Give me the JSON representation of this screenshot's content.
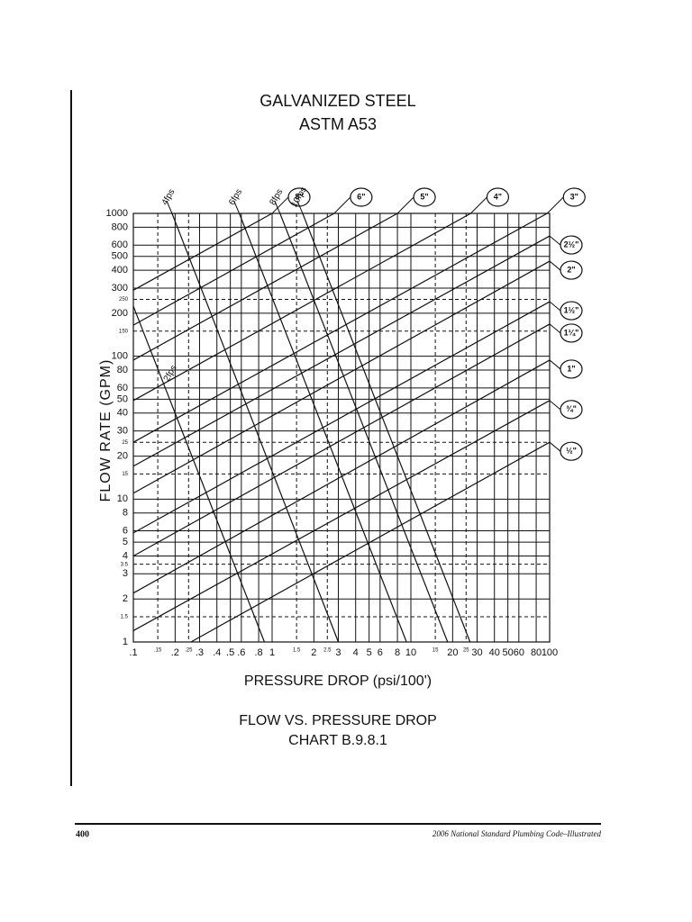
{
  "chart_data": {
    "type": "line",
    "title": "GALVANIZED STEEL",
    "subtitle": "ASTM A53",
    "x_label": "PRESSURE DROP (psi/100')",
    "y_label": "FLOW RATE (GPM)",
    "log_x": true,
    "log_y": true,
    "grid": true,
    "color": "#111111",
    "xlim": [
      0.1,
      100
    ],
    "ylim": [
      1,
      1000
    ],
    "xticks": [
      {
        "value": 0.1,
        "label": ".1"
      },
      {
        "value": 0.15,
        "label": ".15"
      },
      {
        "value": 0.2,
        "label": ".2"
      },
      {
        "value": 0.25,
        "label": ".25"
      },
      {
        "value": 0.3,
        "label": ".3"
      },
      {
        "value": 0.4,
        "label": ".4"
      },
      {
        "value": 0.5,
        "label": ".5"
      },
      {
        "value": 0.6,
        "label": ".6"
      },
      {
        "value": 0.8,
        "label": ".8"
      },
      1,
      1.5,
      2,
      2.5,
      3,
      4,
      5,
      6,
      8,
      10,
      15,
      20,
      25,
      30,
      40,
      50,
      60,
      80,
      100
    ],
    "yticks": [
      1,
      1.5,
      2,
      3,
      3.5,
      4,
      5,
      6,
      8,
      10,
      15,
      20,
      25,
      30,
      40,
      50,
      60,
      80,
      100,
      150,
      200,
      250,
      300,
      400,
      500,
      600,
      800,
      1000
    ],
    "series": [
      {
        "name": "½\"",
        "x": [
          0.26,
          100
        ],
        "values": [
          1,
          25
        ]
      },
      {
        "name": "¾\"",
        "x": [
          0.1,
          100
        ],
        "values": [
          1.2,
          49
        ]
      },
      {
        "name": "1\"",
        "x": [
          0.1,
          100
        ],
        "values": [
          2.2,
          94
        ]
      },
      {
        "name": "1¼\"",
        "x": [
          0.1,
          100
        ],
        "values": [
          4,
          168
        ]
      },
      {
        "name": "1½\"",
        "x": [
          0.1,
          100
        ],
        "values": [
          5.8,
          241
        ]
      },
      {
        "name": "2\"",
        "x": [
          0.1,
          100
        ],
        "values": [
          11,
          463
        ]
      },
      {
        "name": "2½\"",
        "x": [
          0.1,
          100
        ],
        "values": [
          17,
          695
        ]
      },
      {
        "name": "3\"",
        "x": [
          0.1,
          96
        ],
        "values": [
          25,
          1000
        ]
      },
      {
        "name": "4\"",
        "x": [
          0.1,
          27
        ],
        "values": [
          49,
          1000
        ]
      },
      {
        "name": "5\"",
        "x": [
          0.1,
          8
        ],
        "values": [
          94,
          1000
        ]
      },
      {
        "name": "6\"",
        "x": [
          0.1,
          2.8
        ],
        "values": [
          165,
          1000
        ]
      },
      {
        "name": "8\"",
        "x": [
          0.1,
          1
        ],
        "values": [
          290,
          1000
        ]
      },
      {
        "name": "2fps",
        "x": [
          0.1,
          0.88
        ],
        "values": [
          224,
          1
        ]
      },
      {
        "name": "4fps",
        "x": [
          0.19,
          3
        ],
        "values": [
          1000,
          1
        ]
      },
      {
        "name": "6fps",
        "x": [
          0.58,
          9.3
        ],
        "values": [
          1000,
          1
        ]
      },
      {
        "name": "8fps",
        "x": [
          1.14,
          18.4
        ],
        "values": [
          1000,
          1
        ]
      },
      {
        "name": "10fps",
        "x": [
          1.66,
          26.7
        ],
        "values": [
          1000,
          1
        ]
      }
    ]
  },
  "page": {
    "caption": [
      "FLOW VS. PRESSURE DROP",
      "CHART B.9.8.1"
    ],
    "footer": {
      "page_number": "400",
      "source": "2006 National Standard Plumbing Code–Illustrated"
    }
  }
}
